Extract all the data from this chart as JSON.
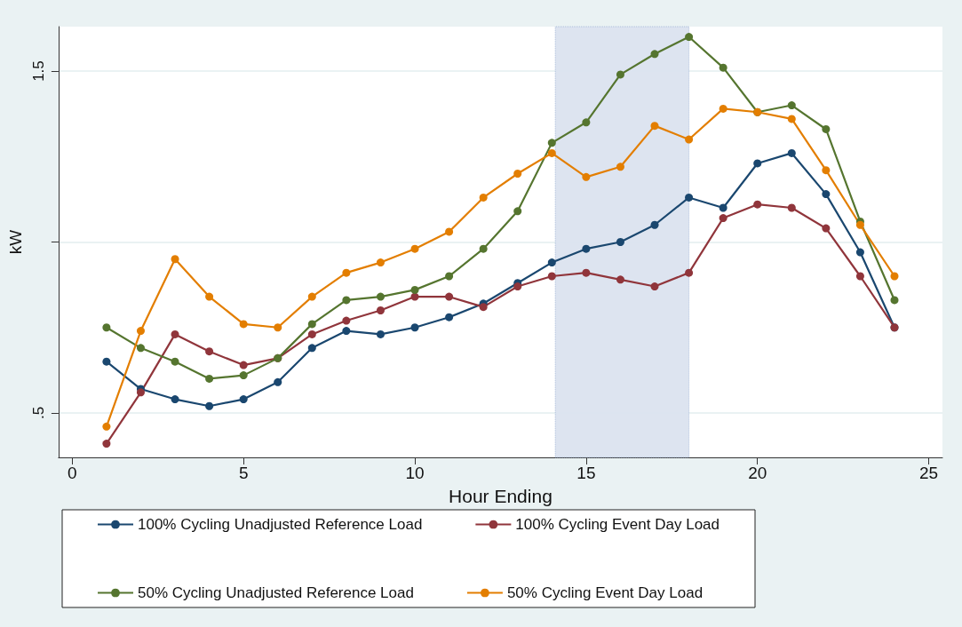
{
  "chart_data": {
    "type": "line",
    "xlabel": "Hour Ending",
    "ylabel": "kW",
    "x": [
      1,
      2,
      3,
      4,
      5,
      6,
      7,
      8,
      9,
      10,
      11,
      12,
      13,
      14,
      15,
      16,
      17,
      18,
      19,
      20,
      21,
      22,
      23,
      24
    ],
    "series": [
      {
        "name": "100% Cycling Unadjusted Reference Load",
        "color": "#1a476f",
        "values": [
          0.65,
          0.57,
          0.54,
          0.52,
          0.54,
          0.59,
          0.69,
          0.74,
          0.73,
          0.75,
          0.78,
          0.82,
          0.88,
          0.94,
          0.98,
          1.0,
          1.05,
          1.13,
          1.1,
          1.23,
          1.26,
          1.14,
          0.97,
          0.75
        ]
      },
      {
        "name": "100% Cycling Event Day Load",
        "color": "#90353b",
        "values": [
          0.41,
          0.56,
          0.73,
          0.68,
          0.64,
          0.66,
          0.73,
          0.77,
          0.8,
          0.84,
          0.84,
          0.81,
          0.87,
          0.9,
          0.91,
          0.89,
          0.87,
          0.91,
          1.07,
          1.11,
          1.1,
          1.04,
          0.9,
          0.75
        ]
      },
      {
        "name": "50% Cycling Unadjusted Reference Load",
        "color": "#55752f",
        "values": [
          0.75,
          0.69,
          0.65,
          0.6,
          0.61,
          0.66,
          0.76,
          0.83,
          0.84,
          0.86,
          0.9,
          0.98,
          1.09,
          1.29,
          1.35,
          1.49,
          1.55,
          1.6,
          1.51,
          1.38,
          1.4,
          1.33,
          1.06,
          0.83
        ]
      },
      {
        "name": "50% Cycling Event Day Load",
        "color": "#e37e00",
        "values": [
          0.46,
          0.74,
          0.95,
          0.84,
          0.76,
          0.75,
          0.84,
          0.91,
          0.94,
          0.98,
          1.03,
          1.13,
          1.2,
          1.26,
          1.19,
          1.22,
          1.34,
          1.3,
          1.39,
          1.38,
          1.36,
          1.21,
          1.05,
          0.9
        ]
      }
    ],
    "xlim": [
      -0.4,
      25.4
    ],
    "xticks": [
      0,
      5,
      10,
      15,
      20,
      25
    ],
    "ylim": [
      0.37,
      1.63
    ],
    "yticks": [
      {
        "value": 0.5,
        "label": ".5"
      },
      {
        "value": 1,
        "label": null
      },
      {
        "value": 1.5,
        "label": "1.5"
      }
    ],
    "bands": [
      {
        "axis": "x",
        "from": 14.1,
        "to": 18,
        "color": "#dbe3ef"
      }
    ],
    "grid": "y",
    "legend": "bottom",
    "marker": "circle",
    "line_style": "solid"
  }
}
